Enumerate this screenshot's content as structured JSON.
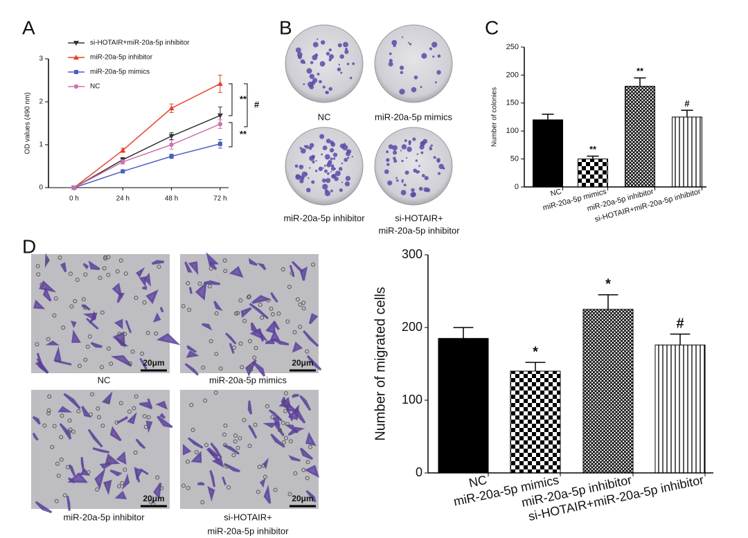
{
  "figure": {
    "panel_labels": [
      "A",
      "B",
      "C",
      "D"
    ],
    "colony_captions": [
      [
        "NC"
      ],
      [
        "miR-20a-5p mimics"
      ],
      [
        "miR-20a-5p inhibitor"
      ],
      [
        "si-HOTAIR+",
        "miR-20a-5p inhibitor"
      ]
    ],
    "migration_captions": [
      [
        "NC"
      ],
      [
        "miR-20a-5p mimics"
      ],
      [
        "miR-20a-5p inhibitor"
      ],
      [
        "si-HOTAIR+",
        "miR-20a-5p inhibitor"
      ]
    ],
    "scale_bar": "20μm"
  },
  "chart_data": [
    {
      "type": "line",
      "y_label": "OD values (490 nm)",
      "categories": [
        "0 h",
        "24 h",
        "48 h",
        "72 h"
      ],
      "ylim": [
        0,
        3
      ],
      "yticks": [
        0,
        1,
        2,
        3
      ],
      "series": [
        {
          "name": "si-HOTAIR+miR-20a-5p inhibitor",
          "color": "#333333",
          "marker": "triangle-down",
          "values": [
            0,
            0.65,
            1.2,
            1.68
          ],
          "errors": [
            0,
            0.05,
            0.08,
            0.2
          ]
        },
        {
          "name": "miR-20a-5p inhibitor",
          "color": "#e8402a",
          "marker": "triangle-up",
          "values": [
            0,
            0.87,
            1.85,
            2.42
          ],
          "errors": [
            0,
            0.05,
            0.1,
            0.2
          ]
        },
        {
          "name": "miR-20a-5p mimics",
          "color": "#4a5fc1",
          "marker": "square",
          "values": [
            0,
            0.38,
            0.73,
            1.02
          ],
          "errors": [
            0,
            0.03,
            0.05,
            0.1
          ]
        },
        {
          "name": "NC",
          "color": "#d070b0",
          "marker": "circle",
          "values": [
            0,
            0.6,
            1.0,
            1.48
          ],
          "errors": [
            0,
            0.05,
            0.1,
            0.1
          ]
        }
      ],
      "annotations": [
        "**",
        "#",
        "**"
      ]
    },
    {
      "type": "bar",
      "y_label": "Number of colonies",
      "categories": [
        "NC",
        "miR-20a-5p mimics",
        "miR-20a-5p inhibitor",
        "si-HOTAIR+miR-20a-5p inhibitor"
      ],
      "values": [
        120,
        50,
        180,
        125
      ],
      "errors": [
        10,
        5,
        15,
        12
      ],
      "annotations": [
        null,
        "**",
        "**",
        "#"
      ],
      "patterns": [
        "solid",
        "checker",
        "crosshatch",
        "vlines"
      ],
      "color": "#000000",
      "ylim": [
        0,
        250
      ],
      "yticks": [
        0,
        50,
        100,
        150,
        200,
        250
      ]
    },
    {
      "type": "bar",
      "y_label": "Number of migrated cells",
      "categories": [
        "NC",
        "miR-20a-5p mimics",
        "miR-20a-5p inhibitor",
        "si-HOTAIR+miR-20a-5p inhibitor"
      ],
      "values": [
        185,
        140,
        225,
        176
      ],
      "errors": [
        15,
        12,
        20,
        15
      ],
      "annotations": [
        null,
        "*",
        "*",
        "#"
      ],
      "patterns": [
        "solid",
        "checker",
        "crosshatch",
        "vlines"
      ],
      "color": "#000000",
      "ylim": [
        0,
        300
      ],
      "yticks": [
        0,
        100,
        200,
        300
      ]
    }
  ]
}
